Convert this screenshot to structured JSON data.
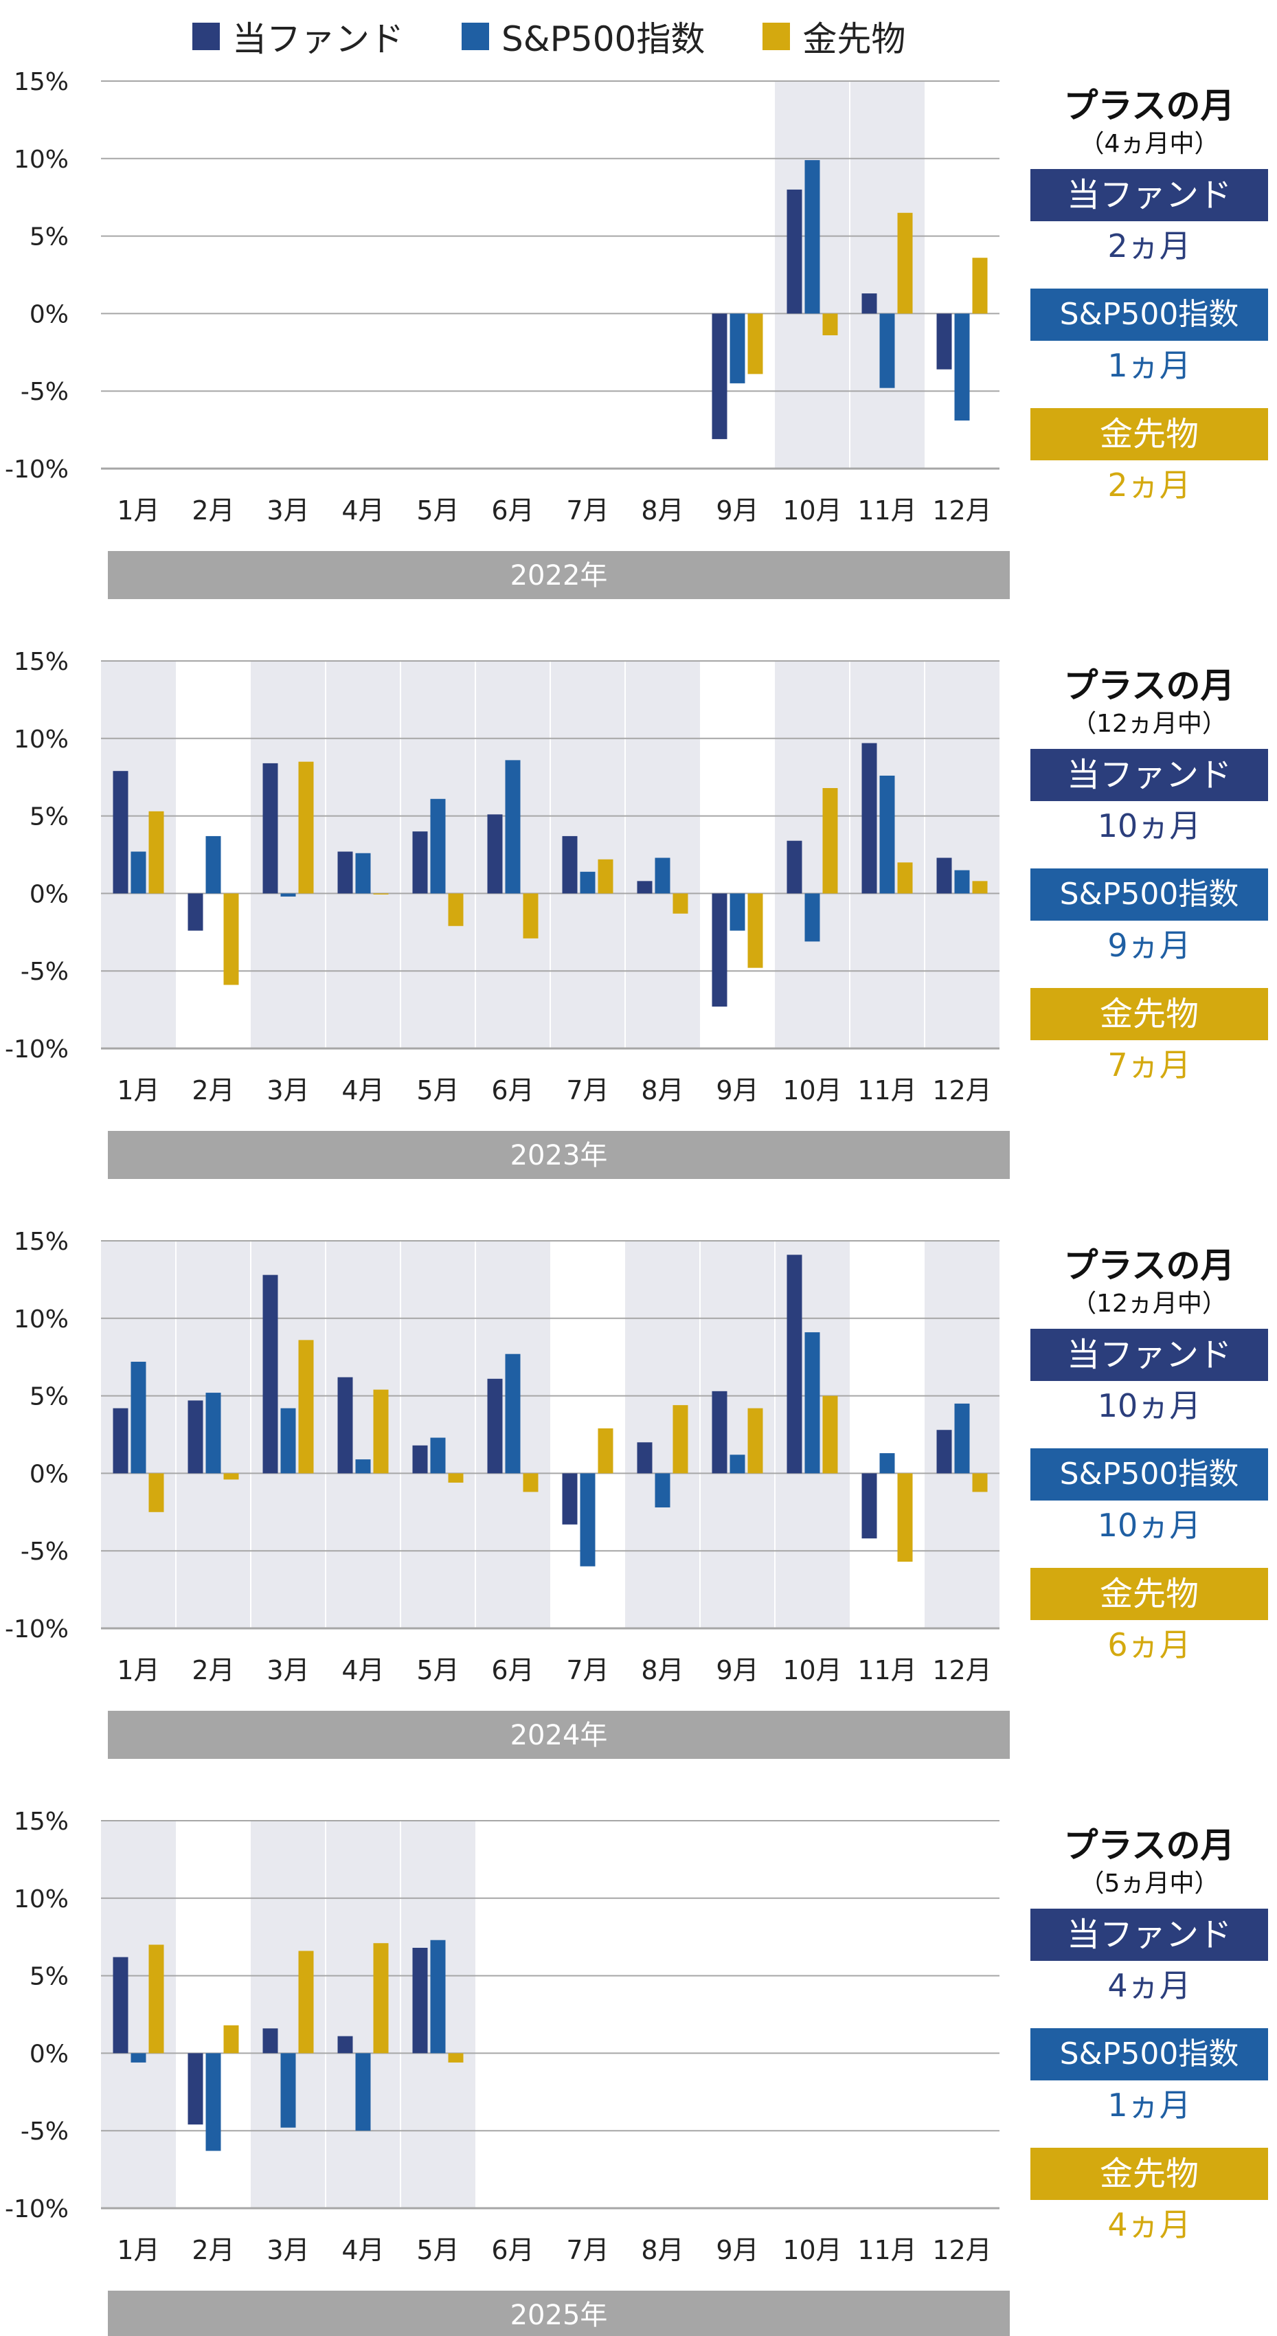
{
  "legend": {
    "items": [
      {
        "label": "当ファンド",
        "color": "#2b3e7c"
      },
      {
        "label": "S&P500指数",
        "color": "#1f5fa3"
      },
      {
        "label": "金先物",
        "color": "#d4a90f"
      }
    ]
  },
  "colors": {
    "fund": "#2b3e7c",
    "sp500": "#1f5fa3",
    "gold": "#d4a90f",
    "shade": "#e8e9ef",
    "grid": "#a6a6a6",
    "year_bar": "#a6a6a6"
  },
  "months": [
    "1月",
    "2月",
    "3月",
    "4月",
    "5月",
    "6月",
    "7月",
    "8月",
    "9月",
    "10月",
    "11月",
    "12月"
  ],
  "yticks": [
    "15%",
    "10%",
    "5%",
    "0%",
    "-5%",
    "-10%"
  ],
  "panels": [
    {
      "year": "2022年",
      "summary": {
        "title": "プラスの月",
        "subtitle": "（4ヵ月中）",
        "fund_label": "当ファンド",
        "fund_count": "2ヵ月",
        "sp500_label": "S&P500指数",
        "sp500_count": "1ヵ月",
        "gold_label": "金先物",
        "gold_count": "2ヵ月"
      }
    },
    {
      "year": "2023年",
      "summary": {
        "title": "プラスの月",
        "subtitle": "（12ヵ月中）",
        "fund_label": "当ファンド",
        "fund_count": "10ヵ月",
        "sp500_label": "S&P500指数",
        "sp500_count": "9ヵ月",
        "gold_label": "金先物",
        "gold_count": "7ヵ月"
      }
    },
    {
      "year": "2024年",
      "summary": {
        "title": "プラスの月",
        "subtitle": "（12ヵ月中）",
        "fund_label": "当ファンド",
        "fund_count": "10ヵ月",
        "sp500_label": "S&P500指数",
        "sp500_count": "10ヵ月",
        "gold_label": "金先物",
        "gold_count": "6ヵ月"
      }
    },
    {
      "year": "2025年",
      "summary": {
        "title": "プラスの月",
        "subtitle": "（5ヵ月中）",
        "fund_label": "当ファンド",
        "fund_count": "4ヵ月",
        "sp500_label": "S&P500指数",
        "sp500_count": "1ヵ月",
        "gold_label": "金先物",
        "gold_count": "4ヵ月"
      }
    }
  ],
  "chart_data": [
    {
      "type": "bar",
      "year": "2022年",
      "categories": [
        "1月",
        "2月",
        "3月",
        "4月",
        "5月",
        "6月",
        "7月",
        "8月",
        "9月",
        "10月",
        "11月",
        "12月"
      ],
      "ylim": [
        -10,
        15
      ],
      "series": [
        {
          "name": "当ファンド",
          "values": [
            null,
            null,
            null,
            null,
            null,
            null,
            null,
            null,
            -8.1,
            8.0,
            1.3,
            -3.6
          ]
        },
        {
          "name": "S&P500指数",
          "values": [
            null,
            null,
            null,
            null,
            null,
            null,
            null,
            null,
            -4.5,
            9.9,
            -4.8,
            -6.9
          ]
        },
        {
          "name": "金先物",
          "values": [
            null,
            null,
            null,
            null,
            null,
            null,
            null,
            null,
            -3.9,
            -1.4,
            6.5,
            3.6
          ]
        }
      ],
      "positive_month_shading": [
        false,
        false,
        false,
        false,
        false,
        false,
        false,
        false,
        false,
        true,
        true,
        false
      ]
    },
    {
      "type": "bar",
      "year": "2023年",
      "categories": [
        "1月",
        "2月",
        "3月",
        "4月",
        "5月",
        "6月",
        "7月",
        "8月",
        "9月",
        "10月",
        "11月",
        "12月"
      ],
      "ylim": [
        -10,
        15
      ],
      "series": [
        {
          "name": "当ファンド",
          "values": [
            7.9,
            -2.4,
            8.4,
            2.7,
            4.0,
            5.1,
            3.7,
            0.8,
            -7.3,
            3.4,
            9.7,
            2.3
          ]
        },
        {
          "name": "S&P500指数",
          "values": [
            2.7,
            3.7,
            -0.2,
            2.6,
            6.1,
            8.6,
            1.4,
            2.3,
            -2.4,
            -3.1,
            7.6,
            1.5
          ]
        },
        {
          "name": "金先物",
          "values": [
            5.3,
            -5.9,
            8.5,
            0.0,
            -2.1,
            -2.9,
            2.2,
            -1.3,
            -4.8,
            6.8,
            2.0,
            0.8
          ]
        }
      ],
      "positive_month_shading": [
        true,
        false,
        true,
        true,
        true,
        true,
        true,
        true,
        false,
        true,
        true,
        true
      ]
    },
    {
      "type": "bar",
      "year": "2024年",
      "categories": [
        "1月",
        "2月",
        "3月",
        "4月",
        "5月",
        "6月",
        "7月",
        "8月",
        "9月",
        "10月",
        "11月",
        "12月"
      ],
      "ylim": [
        -10,
        15
      ],
      "series": [
        {
          "name": "当ファンド",
          "values": [
            4.2,
            4.7,
            12.8,
            6.2,
            1.8,
            6.1,
            -3.3,
            2.0,
            5.3,
            14.1,
            -4.2,
            2.8
          ]
        },
        {
          "name": "S&P500指数",
          "values": [
            7.2,
            5.2,
            4.2,
            0.9,
            2.3,
            7.7,
            -6.0,
            -2.2,
            1.2,
            9.1,
            1.3,
            4.5
          ]
        },
        {
          "name": "金先物",
          "values": [
            -2.5,
            -0.4,
            8.6,
            5.4,
            -0.6,
            -1.2,
            2.9,
            4.4,
            4.2,
            5.0,
            -5.7,
            -1.2
          ]
        }
      ],
      "positive_month_shading": [
        true,
        true,
        true,
        true,
        true,
        true,
        false,
        true,
        true,
        true,
        false,
        true
      ]
    },
    {
      "type": "bar",
      "year": "2025年",
      "categories": [
        "1月",
        "2月",
        "3月",
        "4月",
        "5月",
        "6月",
        "7月",
        "8月",
        "9月",
        "10月",
        "11月",
        "12月"
      ],
      "ylim": [
        -10,
        15
      ],
      "series": [
        {
          "name": "当ファンド",
          "values": [
            6.2,
            -4.6,
            1.6,
            1.1,
            6.8,
            null,
            null,
            null,
            null,
            null,
            null,
            null
          ]
        },
        {
          "name": "S&P500指数",
          "values": [
            -0.6,
            -6.3,
            -4.8,
            -5.0,
            7.3,
            null,
            null,
            null,
            null,
            null,
            null,
            null
          ]
        },
        {
          "name": "金先物",
          "values": [
            7.0,
            1.8,
            6.6,
            7.1,
            -0.6,
            null,
            null,
            null,
            null,
            null,
            null,
            null
          ]
        }
      ],
      "positive_month_shading": [
        true,
        false,
        true,
        true,
        true,
        false,
        false,
        false,
        false,
        false,
        false,
        false
      ]
    }
  ]
}
